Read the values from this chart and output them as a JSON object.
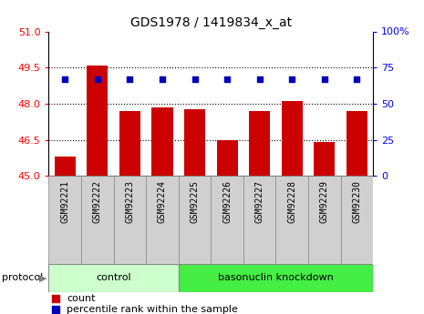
{
  "title": "GDS1978 / 1419834_x_at",
  "samples": [
    "GSM92221",
    "GSM92222",
    "GSM92223",
    "GSM92224",
    "GSM92225",
    "GSM92226",
    "GSM92227",
    "GSM92228",
    "GSM92229",
    "GSM92230"
  ],
  "count_values": [
    45.8,
    49.6,
    47.7,
    47.85,
    47.75,
    46.5,
    47.7,
    48.1,
    46.4,
    47.7
  ],
  "percentile_values": [
    67,
    67,
    67,
    67,
    67,
    67,
    67,
    67,
    67,
    67
  ],
  "ylim_left": [
    45,
    51
  ],
  "ylim_right": [
    0,
    100
  ],
  "yticks_left": [
    45,
    46.5,
    48,
    49.5,
    51
  ],
  "yticks_right": [
    0,
    25,
    50,
    75,
    100
  ],
  "ytick_labels_right": [
    "0",
    "25",
    "50",
    "75",
    "100%"
  ],
  "bar_color": "#cc0000",
  "dot_color": "#0000bb",
  "control_label": "control",
  "knockdown_label": "basonuclin knockdown",
  "protocol_label": "protocol",
  "legend_count": "count",
  "legend_percentile": "percentile rank within the sample",
  "n_control": 4,
  "n_knockdown": 6,
  "ctrl_color": "#ccffcc",
  "knock_color": "#44ee44",
  "sample_bg": "#d0d0d0",
  "panel_bg": "#ffffff"
}
